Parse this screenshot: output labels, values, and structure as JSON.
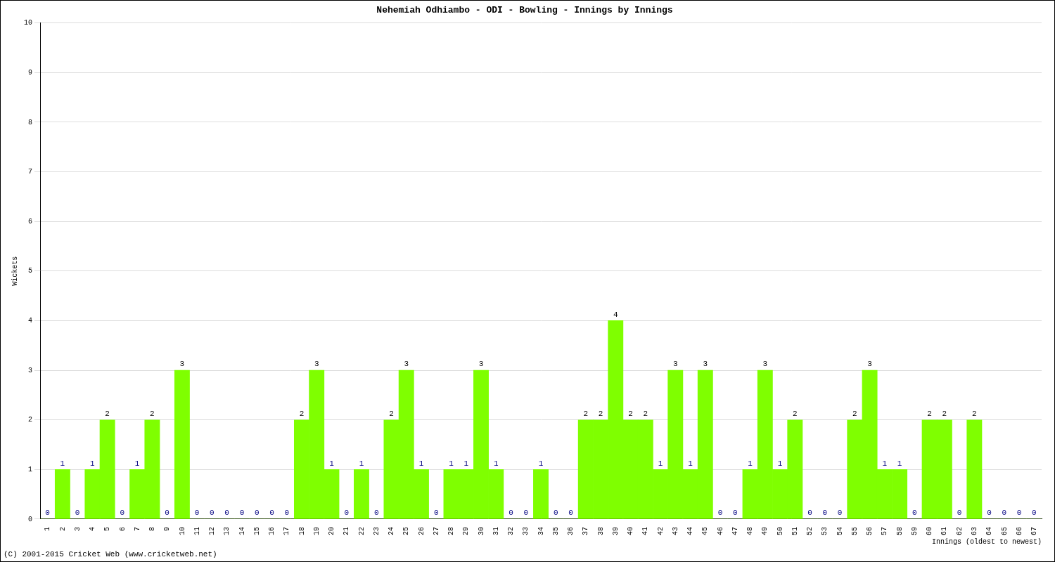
{
  "chart_data": {
    "type": "bar",
    "title": "Nehemiah Odhiambo - ODI - Bowling - Innings by Innings",
    "x_label": "Innings (oldest to newest)",
    "y_label": "Wickets",
    "annotations": [
      "(C) 2001-2015 Cricket Web (www.cricketweb.net)"
    ],
    "categories": [
      "1",
      "2",
      "3",
      "4",
      "5",
      "6",
      "7",
      "8",
      "9",
      "10",
      "11",
      "12",
      "13",
      "14",
      "15",
      "16",
      "17",
      "18",
      "19",
      "20",
      "21",
      "22",
      "23",
      "24",
      "25",
      "26",
      "27",
      "28",
      "29",
      "30",
      "31",
      "32",
      "33",
      "34",
      "35",
      "36",
      "37",
      "38",
      "39",
      "40",
      "41",
      "42",
      "43",
      "44",
      "45",
      "46",
      "47",
      "48",
      "49",
      "50",
      "51",
      "52",
      "53",
      "54",
      "55",
      "56",
      "57",
      "58",
      "59",
      "60",
      "61",
      "62",
      "63",
      "64",
      "65",
      "66",
      "67"
    ],
    "values": [
      0,
      1,
      0,
      1,
      2,
      0,
      1,
      2,
      0,
      3,
      0,
      0,
      0,
      0,
      0,
      0,
      0,
      2,
      3,
      1,
      0,
      1,
      0,
      2,
      3,
      1,
      0,
      1,
      1,
      3,
      1,
      0,
      0,
      1,
      0,
      0,
      2,
      2,
      4,
      2,
      2,
      1,
      3,
      1,
      3,
      0,
      0,
      1,
      3,
      1,
      2,
      0,
      0,
      0,
      2,
      3,
      1,
      1,
      0,
      2,
      2,
      0,
      2,
      0,
      0,
      0,
      0
    ],
    "color": "#7fff00",
    "ylim": [
      0,
      10
    ],
    "yticks": [
      0,
      1,
      2,
      3,
      4,
      5,
      6,
      7,
      8,
      9,
      10
    ],
    "grid": true,
    "data_labels": true
  }
}
